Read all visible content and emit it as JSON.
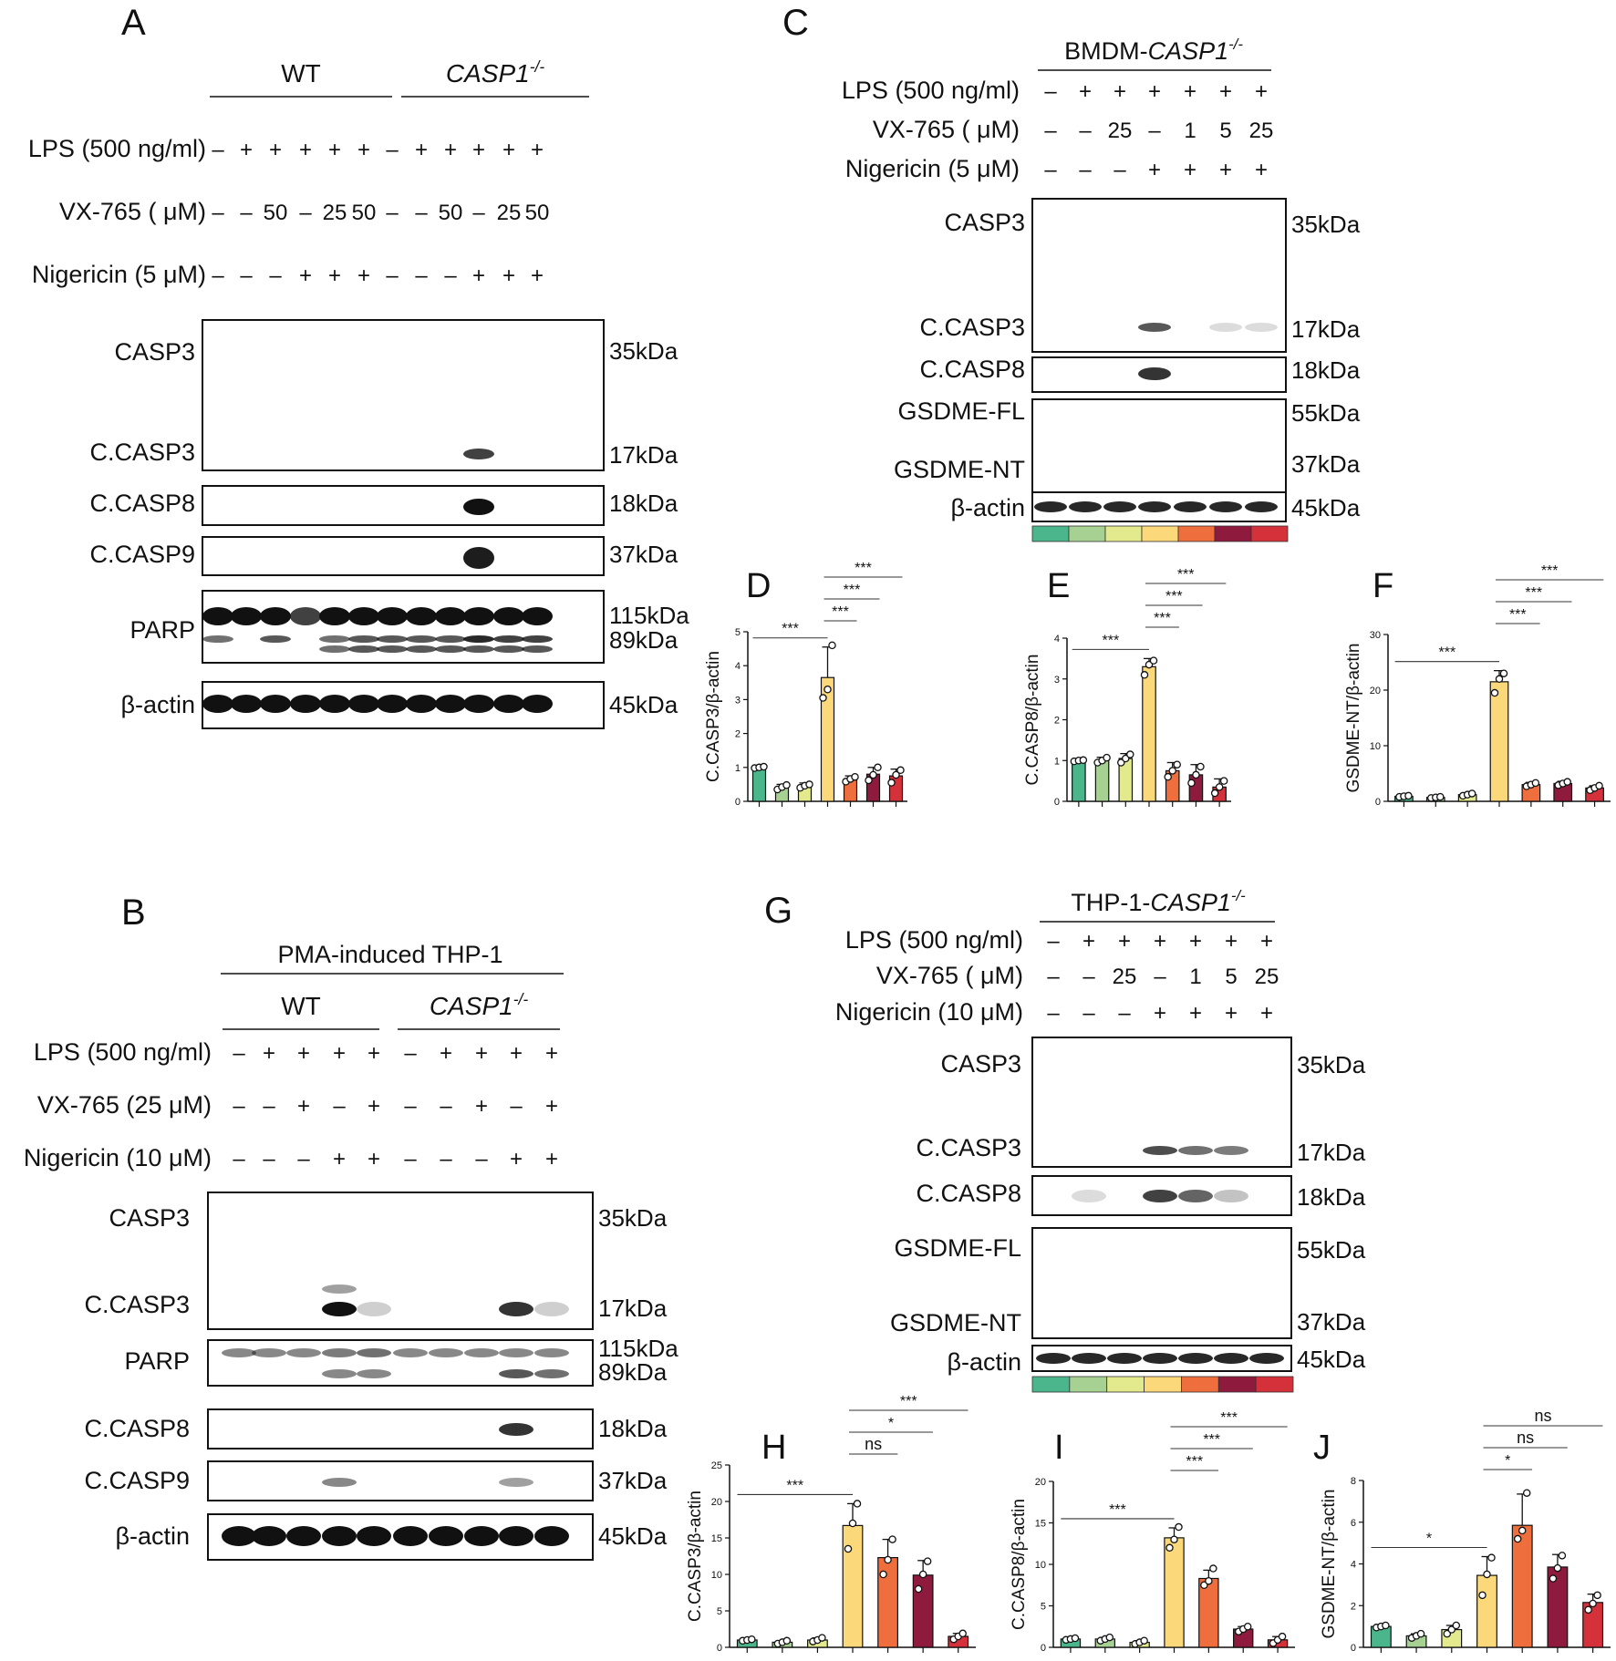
{
  "colors": {
    "lane_palette": [
      "#4bb58b",
      "#a6d193",
      "#e3ea8d",
      "#fbd97a",
      "#ef6e3d",
      "#8e1b3e",
      "#d4313a"
    ]
  },
  "panel_A": {
    "letter": "A",
    "groups": [
      "WT",
      "CASP1-/-"
    ],
    "conditions": [
      {
        "label": "LPS (500 ng/ml)",
        "values": [
          "–",
          "+",
          "+",
          "+",
          "+",
          "+",
          "–",
          "+",
          "+",
          "+",
          "+",
          "+"
        ]
      },
      {
        "label": "VX-765 ( μM)",
        "values": [
          "–",
          "–",
          "50",
          "–",
          "25",
          "50",
          "–",
          "–",
          "50",
          "–",
          "25",
          "50"
        ]
      },
      {
        "label": "Nigericin (5 μM)",
        "values": [
          "–",
          "–",
          "–",
          "+",
          "+",
          "+",
          "–",
          "–",
          "–",
          "+",
          "+",
          "+"
        ]
      }
    ],
    "blots": [
      {
        "name": "CASP3",
        "mw": [
          "35kDa"
        ]
      },
      {
        "name": "C.CASP3",
        "mw": [
          "17kDa"
        ]
      },
      {
        "name": "C.CASP8",
        "mw": [
          "18kDa"
        ]
      },
      {
        "name": "C.CASP9",
        "mw": [
          "37kDa"
        ]
      },
      {
        "name": "PARP",
        "mw": [
          "115kDa",
          "89kDa"
        ]
      },
      {
        "name": "β-actin",
        "mw": [
          "45kDa"
        ]
      }
    ]
  },
  "panel_B": {
    "letter": "B",
    "header": "PMA-induced THP-1",
    "groups": [
      "WT",
      "CASP1-/-"
    ],
    "conditions": [
      {
        "label": "LPS (500 ng/ml)",
        "values": [
          "–",
          "+",
          "+",
          "+",
          "+",
          "–",
          "+",
          "+",
          "+",
          "+"
        ]
      },
      {
        "label": "VX-765 (25 μM)",
        "values": [
          "–",
          "–",
          "+",
          "–",
          "+",
          "–",
          "–",
          "+",
          "–",
          "+"
        ]
      },
      {
        "label": "Nigericin (10 μM)",
        "values": [
          "–",
          "–",
          "–",
          "+",
          "+",
          "–",
          "–",
          "–",
          "+",
          "+"
        ]
      }
    ],
    "blots": [
      {
        "name": "CASP3",
        "mw": [
          "35kDa"
        ]
      },
      {
        "name": "C.CASP3",
        "mw": [
          "17kDa"
        ]
      },
      {
        "name": "PARP",
        "mw": [
          "115kDa",
          "89kDa"
        ]
      },
      {
        "name": "C.CASP8",
        "mw": [
          "18kDa"
        ]
      },
      {
        "name": "C.CASP9",
        "mw": [
          "37kDa"
        ]
      },
      {
        "name": "β-actin",
        "mw": [
          "45kDa"
        ]
      }
    ]
  },
  "panel_C": {
    "letter": "C",
    "header": "BMDM-CASP1-/-",
    "conditions": [
      {
        "label": "LPS (500 ng/ml)",
        "values": [
          "–",
          "+",
          "+",
          "+",
          "+",
          "+",
          "+"
        ]
      },
      {
        "label": "VX-765 ( μM)",
        "values": [
          "–",
          "–",
          "25",
          "–",
          "1",
          "5",
          "25"
        ]
      },
      {
        "label": "Nigericin (5 μM)",
        "values": [
          "–",
          "–",
          "–",
          "+",
          "+",
          "+",
          "+"
        ]
      }
    ],
    "blots": [
      {
        "name": "CASP3",
        "mw": [
          "35kDa"
        ]
      },
      {
        "name": "C.CASP3",
        "mw": [
          "17kDa"
        ]
      },
      {
        "name": "C.CASP8",
        "mw": [
          "18kDa"
        ]
      },
      {
        "name": "GSDME-FL",
        "mw": [
          "55kDa"
        ]
      },
      {
        "name": "GSDME-NT",
        "mw": [
          "37kDa"
        ]
      },
      {
        "name": "β-actin",
        "mw": [
          "45kDa"
        ]
      }
    ]
  },
  "panel_G": {
    "letter": "G",
    "header": "THP-1-CASP1-/-",
    "conditions": [
      {
        "label": "LPS (500 ng/ml)",
        "values": [
          "–",
          "+",
          "+",
          "+",
          "+",
          "+",
          "+"
        ]
      },
      {
        "label": "VX-765 ( μM)",
        "values": [
          "–",
          "–",
          "25",
          "–",
          "1",
          "5",
          "25"
        ]
      },
      {
        "label": "Nigericin (10 μM)",
        "values": [
          "–",
          "–",
          "–",
          "+",
          "+",
          "+",
          "+"
        ]
      }
    ],
    "blots": [
      {
        "name": "CASP3",
        "mw": [
          "35kDa"
        ]
      },
      {
        "name": "C.CASP3",
        "mw": [
          "17kDa"
        ]
      },
      {
        "name": "C.CASP8",
        "mw": [
          "18kDa"
        ]
      },
      {
        "name": "GSDME-FL",
        "mw": [
          "55kDa"
        ]
      },
      {
        "name": "GSDME-NT",
        "mw": [
          "37kDa"
        ]
      },
      {
        "name": "β-actin",
        "mw": [
          "45kDa"
        ]
      }
    ]
  },
  "chart_data": [
    {
      "panel": "D",
      "type": "bar",
      "ylabel": "C.CASP3/β-actin",
      "ylim": [
        0,
        5
      ],
      "yticks": [
        "0",
        "1",
        "2",
        "3",
        "4",
        "5"
      ],
      "values": [
        1.0,
        0.42,
        0.45,
        3.65,
        0.65,
        0.8,
        0.75
      ],
      "errors": [
        0.03,
        0.08,
        0.09,
        0.9,
        0.1,
        0.2,
        0.2
      ],
      "points": [
        [
          0.98,
          1.0,
          1.02
        ],
        [
          0.35,
          0.42,
          0.48
        ],
        [
          0.4,
          0.46,
          0.5
        ],
        [
          3.05,
          3.3,
          4.6
        ],
        [
          0.58,
          0.66,
          0.72
        ],
        [
          0.62,
          0.78,
          1.0
        ],
        [
          0.55,
          0.78,
          0.92
        ]
      ],
      "sig": [
        {
          "from": 0,
          "to": 3,
          "label": "***"
        },
        {
          "from": 3,
          "to": 4,
          "label": "***"
        },
        {
          "from": 3,
          "to": 5,
          "label": "***"
        },
        {
          "from": 3,
          "to": 6,
          "label": "***"
        }
      ]
    },
    {
      "panel": "E",
      "type": "bar",
      "ylabel": "C.CASP8/β-actin",
      "ylim": [
        0,
        4
      ],
      "yticks": [
        "0",
        "1",
        "2",
        "3",
        "4"
      ],
      "values": [
        1.0,
        1.0,
        1.05,
        3.3,
        0.75,
        0.65,
        0.35
      ],
      "errors": [
        0.02,
        0.08,
        0.12,
        0.2,
        0.2,
        0.25,
        0.2
      ],
      "points": [
        [
          0.98,
          1.0,
          1.01
        ],
        [
          0.95,
          1.0,
          1.07
        ],
        [
          0.95,
          1.05,
          1.15
        ],
        [
          3.1,
          3.35,
          3.45
        ],
        [
          0.6,
          0.75,
          0.9
        ],
        [
          0.45,
          0.65,
          0.85
        ],
        [
          0.2,
          0.35,
          0.5
        ]
      ],
      "sig": [
        {
          "from": 0,
          "to": 3,
          "label": "***"
        },
        {
          "from": 3,
          "to": 4,
          "label": "***"
        },
        {
          "from": 3,
          "to": 5,
          "label": "***"
        },
        {
          "from": 3,
          "to": 6,
          "label": "***"
        }
      ]
    },
    {
      "panel": "F",
      "type": "bar",
      "ylabel": "GSDME-NT/β-actin",
      "ylim": [
        0,
        30
      ],
      "yticks": [
        "0",
        "10",
        "20",
        "30"
      ],
      "values": [
        0.9,
        0.7,
        1.2,
        21.5,
        3.0,
        3.2,
        2.4
      ],
      "errors": [
        0.2,
        0.2,
        0.3,
        2.0,
        0.4,
        0.4,
        0.4
      ],
      "points": [
        [
          0.8,
          0.9,
          1.0
        ],
        [
          0.6,
          0.7,
          0.8
        ],
        [
          1.0,
          1.2,
          1.4
        ],
        [
          19.5,
          22.0,
          23.0
        ],
        [
          2.7,
          3.0,
          3.3
        ],
        [
          2.9,
          3.2,
          3.5
        ],
        [
          2.0,
          2.4,
          2.8
        ]
      ],
      "sig": [
        {
          "from": 0,
          "to": 3,
          "label": "***"
        },
        {
          "from": 3,
          "to": 4,
          "label": "***"
        },
        {
          "from": 3,
          "to": 5,
          "label": "***"
        },
        {
          "from": 3,
          "to": 6,
          "label": "***"
        }
      ]
    },
    {
      "panel": "H",
      "type": "bar",
      "ylabel": "C.CASP3/β-actin",
      "ylim": [
        0,
        25
      ],
      "yticks": [
        "0",
        "5",
        "10",
        "15",
        "20",
        "25"
      ],
      "values": [
        1.0,
        0.7,
        1.0,
        16.7,
        12.3,
        9.9,
        1.5
      ],
      "errors": [
        0.1,
        0.2,
        0.3,
        3.0,
        2.5,
        2.0,
        0.4
      ],
      "points": [
        [
          0.9,
          1.0,
          1.1
        ],
        [
          0.5,
          0.7,
          0.9
        ],
        [
          0.8,
          1.0,
          1.3
        ],
        [
          13.5,
          17.0,
          19.7
        ],
        [
          10.0,
          12.0,
          14.8
        ],
        [
          8.0,
          10.0,
          11.8
        ],
        [
          1.1,
          1.5,
          1.9
        ]
      ],
      "sig": [
        {
          "from": 0,
          "to": 3,
          "label": "***"
        },
        {
          "from": 3,
          "to": 4,
          "label": "ns"
        },
        {
          "from": 3,
          "to": 5,
          "label": "*"
        },
        {
          "from": 3,
          "to": 6,
          "label": "***"
        }
      ]
    },
    {
      "panel": "I",
      "type": "bar",
      "ylabel": "C.CASP8/β-actin",
      "ylim": [
        0,
        20
      ],
      "yticks": [
        "0",
        "5",
        "10",
        "15",
        "20"
      ],
      "values": [
        1.0,
        1.0,
        0.6,
        13.2,
        8.3,
        2.2,
        0.9
      ],
      "errors": [
        0.1,
        0.2,
        0.2,
        1.2,
        1.0,
        0.3,
        0.4
      ],
      "points": [
        [
          0.9,
          1.0,
          1.1
        ],
        [
          0.8,
          1.0,
          1.2
        ],
        [
          0.4,
          0.6,
          0.8
        ],
        [
          12.0,
          13.0,
          14.5
        ],
        [
          7.5,
          8.0,
          9.5
        ],
        [
          1.9,
          2.2,
          2.5
        ],
        [
          0.5,
          0.9,
          1.3
        ]
      ],
      "sig": [
        {
          "from": 0,
          "to": 3,
          "label": "***"
        },
        {
          "from": 3,
          "to": 4,
          "label": "***"
        },
        {
          "from": 3,
          "to": 5,
          "label": "***"
        },
        {
          "from": 3,
          "to": 6,
          "label": "***"
        }
      ]
    },
    {
      "panel": "J",
      "type": "bar",
      "ylabel": "GSDME-NT/β-actin",
      "ylim": [
        0,
        8
      ],
      "yticks": [
        "0",
        "2",
        "4",
        "6",
        "8"
      ],
      "values": [
        1.0,
        0.55,
        0.85,
        3.45,
        5.85,
        3.85,
        2.15
      ],
      "errors": [
        0.05,
        0.1,
        0.2,
        0.9,
        1.5,
        0.6,
        0.4
      ],
      "points": [
        [
          0.95,
          1.0,
          1.05
        ],
        [
          0.45,
          0.55,
          0.65
        ],
        [
          0.65,
          0.85,
          1.05
        ],
        [
          2.5,
          3.5,
          4.3
        ],
        [
          5.2,
          5.6,
          7.4
        ],
        [
          3.3,
          3.8,
          4.4
        ],
        [
          1.8,
          2.1,
          2.5
        ]
      ],
      "sig": [
        {
          "from": 0,
          "to": 3,
          "label": "*"
        },
        {
          "from": 3,
          "to": 4,
          "label": "*"
        },
        {
          "from": 3,
          "to": 5,
          "label": "ns"
        },
        {
          "from": 3,
          "to": 6,
          "label": "ns"
        }
      ]
    }
  ]
}
